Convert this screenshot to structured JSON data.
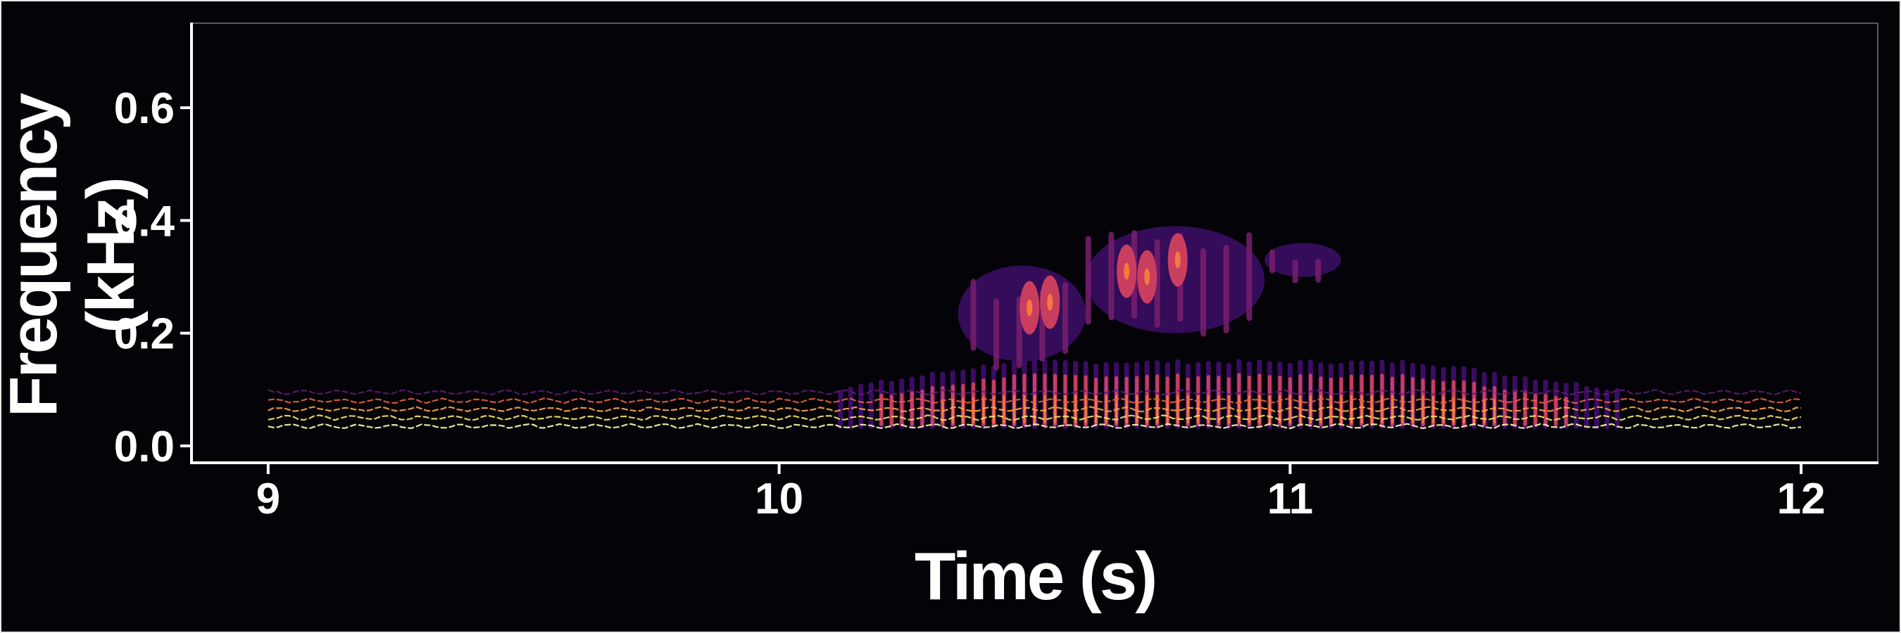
{
  "chart_data": {
    "type": "heatmap",
    "title": "",
    "xlabel": "Time (s)",
    "ylabel": "Frequency (kHz)",
    "xlim": [
      8.85,
      12.15
    ],
    "ylim": [
      -0.03,
      0.75
    ],
    "x_ticks": [
      9,
      10,
      11,
      12
    ],
    "y_ticks": [
      0.0,
      0.2,
      0.4,
      0.6
    ],
    "x_tick_labels": [
      "9",
      "10",
      "11",
      "12"
    ],
    "y_tick_labels": [
      "0.0",
      "0.2",
      "0.4",
      "0.6"
    ],
    "grid": false,
    "legend": "none",
    "colormap": [
      "#3a0d63",
      "#7a1f6f",
      "#c93e5e",
      "#f37a3c",
      "#f9c343",
      "#fcfdaf"
    ],
    "background_color": "#040307",
    "harmonic_bands_khz": [
      0.035,
      0.05,
      0.065,
      0.08,
      0.095
    ],
    "harmonic_band_colors": [
      "#fcfdaf",
      "#f9e36a",
      "#f9a94b",
      "#e46044",
      "#5b1c74"
    ],
    "regions": [
      {
        "t_start": 9.0,
        "t_end": 12.0,
        "f_low": 0.03,
        "f_high": 0.1,
        "intensity": "low"
      },
      {
        "t_start": 10.1,
        "t_end": 11.65,
        "f_low": 0.03,
        "f_high": 0.15,
        "intensity": "high"
      },
      {
        "t_start": 10.35,
        "t_end": 10.6,
        "f_low": 0.15,
        "f_high": 0.32,
        "intensity": "medium"
      },
      {
        "t_start": 10.6,
        "t_end": 10.95,
        "f_low": 0.2,
        "f_high": 0.39,
        "intensity": "medium"
      },
      {
        "t_start": 10.95,
        "t_end": 11.1,
        "f_low": 0.3,
        "f_high": 0.36,
        "intensity": "low"
      }
    ],
    "hot_spots": [
      {
        "t": 10.49,
        "f": 0.245
      },
      {
        "t": 10.53,
        "f": 0.255
      },
      {
        "t": 10.68,
        "f": 0.31
      },
      {
        "t": 10.72,
        "f": 0.3
      },
      {
        "t": 10.78,
        "f": 0.33
      }
    ]
  }
}
